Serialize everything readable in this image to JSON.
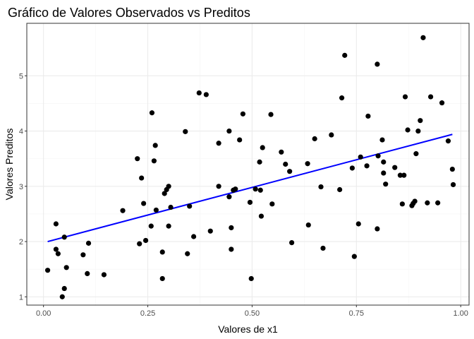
{
  "chart_data": {
    "type": "scatter",
    "title": "Gráfico de Valores Observados vs Preditos",
    "xlabel": "Valores de x1",
    "ylabel": "Valores Preditos",
    "xlim": [
      -0.04,
      1.02
    ],
    "ylim": [
      0.85,
      5.95
    ],
    "x_ticks": [
      0.0,
      0.25,
      0.5,
      0.75,
      1.0
    ],
    "x_tick_labels": [
      "0.00",
      "0.25",
      "0.50",
      "0.75",
      "1.00"
    ],
    "y_ticks": [
      1,
      2,
      3,
      4,
      5
    ],
    "y_tick_labels": [
      "1",
      "2",
      "3",
      "4",
      "5"
    ],
    "grid": true,
    "legend": "none",
    "colors": {
      "points": "#000000",
      "fit_line": "#0000ff",
      "grid_major": "#ebebeb",
      "grid_minor": "#f5f5f5",
      "panel_border": "#333333"
    },
    "series": [
      {
        "type": "scatter",
        "x": [
          0.01,
          0.03,
          0.03,
          0.035,
          0.045,
          0.05,
          0.05,
          0.055,
          0.095,
          0.105,
          0.108,
          0.145,
          0.19,
          0.225,
          0.23,
          0.235,
          0.24,
          0.245,
          0.258,
          0.26,
          0.265,
          0.268,
          0.27,
          0.285,
          0.285,
          0.29,
          0.295,
          0.3,
          0.3,
          0.305,
          0.34,
          0.345,
          0.35,
          0.36,
          0.373,
          0.39,
          0.4,
          0.42,
          0.42,
          0.445,
          0.445,
          0.45,
          0.45,
          0.455,
          0.46,
          0.47,
          0.478,
          0.495,
          0.498,
          0.508,
          0.518,
          0.52,
          0.522,
          0.525,
          0.545,
          0.548,
          0.57,
          0.58,
          0.59,
          0.595,
          0.633,
          0.635,
          0.65,
          0.665,
          0.67,
          0.69,
          0.71,
          0.715,
          0.722,
          0.74,
          0.745,
          0.755,
          0.76,
          0.775,
          0.778,
          0.8,
          0.8,
          0.802,
          0.812,
          0.815,
          0.815,
          0.82,
          0.842,
          0.855,
          0.86,
          0.864,
          0.867,
          0.873,
          0.883,
          0.886,
          0.89,
          0.893,
          0.898,
          0.903,
          0.91,
          0.92,
          0.928,
          0.945,
          0.955,
          0.97,
          0.98,
          0.982
        ],
        "y": [
          1.48,
          1.86,
          2.32,
          1.78,
          1.0,
          1.15,
          2.08,
          1.53,
          1.76,
          1.42,
          1.97,
          1.4,
          2.56,
          3.5,
          1.96,
          3.15,
          2.69,
          2.02,
          2.28,
          4.33,
          3.46,
          3.74,
          2.57,
          1.33,
          1.81,
          2.87,
          2.94,
          3.0,
          2.28,
          2.62,
          3.99,
          1.78,
          2.64,
          2.09,
          4.69,
          4.66,
          2.19,
          3.78,
          3.0,
          4.0,
          2.81,
          2.25,
          1.86,
          2.93,
          2.95,
          3.84,
          4.31,
          2.71,
          1.33,
          2.95,
          3.44,
          2.93,
          2.46,
          3.7,
          4.3,
          2.68,
          3.62,
          3.4,
          3.27,
          1.98,
          3.41,
          2.3,
          3.86,
          2.99,
          1.88,
          3.93,
          2.94,
          4.6,
          5.37,
          3.33,
          1.73,
          2.32,
          3.53,
          3.37,
          4.27,
          5.21,
          2.23,
          3.55,
          3.84,
          3.44,
          3.24,
          3.04,
          3.34,
          3.2,
          2.68,
          3.2,
          4.62,
          4.02,
          2.65,
          2.69,
          2.73,
          3.59,
          4.0,
          4.19,
          5.69,
          2.7,
          4.62,
          2.7,
          4.51,
          3.82,
          3.31,
          3.03
        ]
      },
      {
        "type": "line",
        "x": [
          0.01,
          0.98
        ],
        "y": [
          2.0,
          3.94
        ]
      }
    ]
  }
}
